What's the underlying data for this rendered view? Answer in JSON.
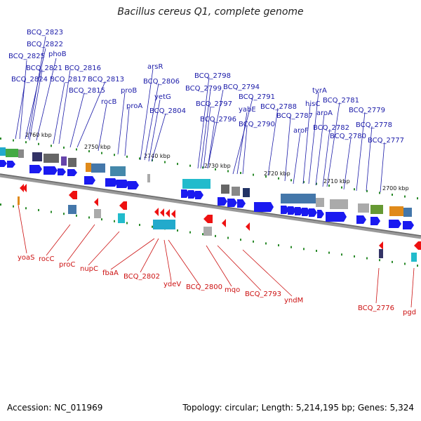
{
  "title": "Bacillus cereus Q1, complete genome",
  "footer": {
    "accession": "Accession: NC_011969",
    "topology": "Topology: circular; Length: 5,214,195 bp; Genes: 5,324"
  },
  "colors": {
    "forward_label": "#1a1aa8",
    "reverse_label": "#cc1111",
    "backbone": "#888888",
    "forward_arrow": "#1a1af0",
    "reverse_arrow": "#ee1111"
  },
  "kbp_ticks": [
    "2760 kbp",
    "2750 kbp",
    "2740 kbp",
    "2730 kbp",
    "2720 kbp",
    "2710 kbp",
    "2700 kbp"
  ],
  "top_labels": [
    "BCQ_2823",
    "BCQ_2822",
    "BCQ_2825",
    "phoB",
    "BCQ_2821",
    "BCQ_2824",
    "BCQ_2817",
    "BCQ_2816",
    "BCQ_2815",
    "BCQ_2813",
    "rocB",
    "proB",
    "proA",
    "arsR",
    "BCQ_2806",
    "yetG",
    "BCQ_2804",
    "BCQ_2798",
    "BCQ_2799",
    "BCQ_2794",
    "BCQ_2797",
    "BCQ_2791",
    "yabE",
    "BCQ_2796",
    "BCQ_2790",
    "BCQ_2788",
    "BCQ_2787",
    "tyrA",
    "hisC",
    "aroA",
    "aroF",
    "BCQ_2781",
    "BCQ_2782",
    "BCQ_2779",
    "BCQ_2780",
    "BCQ_2778",
    "BCQ_2777"
  ],
  "bottom_labels": [
    "yoaS",
    "rocC",
    "proC",
    "nupC",
    "fbaA",
    "BCQ_2802",
    "ydeV",
    "BCQ_2800",
    "mqo",
    "BCQ_2793",
    "yndM",
    "BCQ_2776",
    "pgd"
  ]
}
